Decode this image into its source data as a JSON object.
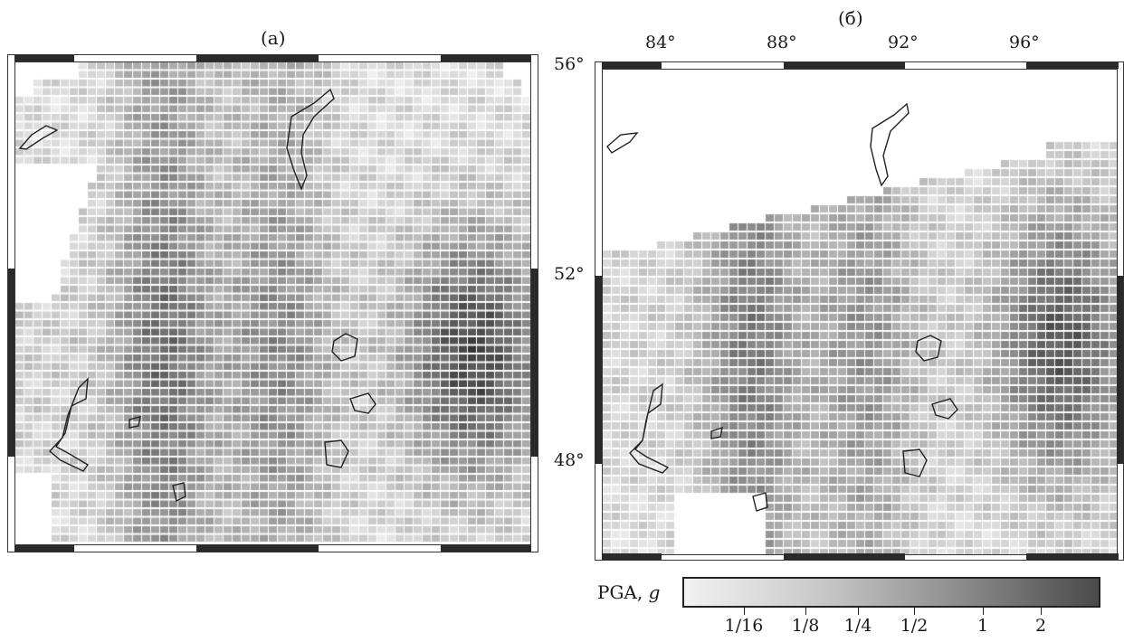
{
  "panels": [
    {
      "id": "a",
      "label": "(a)"
    },
    {
      "id": "b",
      "label": "(б)",
      "lon_labels": [
        "84°",
        "88°",
        "92°",
        "96°"
      ],
      "lat_labels": [
        "56°",
        "52°",
        "48°"
      ]
    }
  ],
  "colorbar": {
    "title_prefix": "PGA, ",
    "title_unit": "g",
    "ticks": [
      "1/16",
      "1/8",
      "1/4",
      "1/2",
      "1",
      "2"
    ],
    "colors": [
      "#f2f2f2",
      "#c8c8c8",
      "#8c8c8c",
      "#4a4a4a"
    ]
  },
  "map_style": {
    "coastline_color": "#222222",
    "frame_color": "#333333",
    "scale_bar_color": "#2a2a2a"
  }
}
